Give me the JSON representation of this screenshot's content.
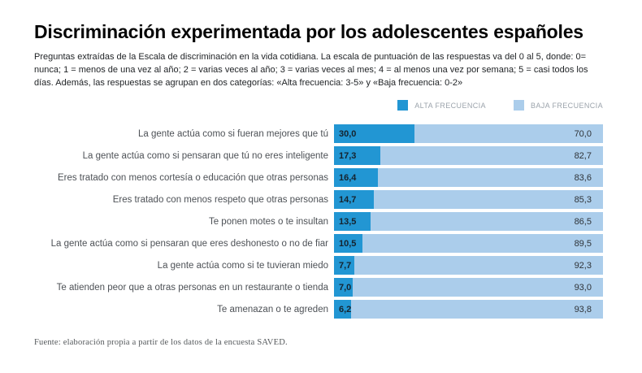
{
  "header": {
    "title": "Discriminación experimentada por los adolescentes españoles",
    "subtitle": "Preguntas extraídas de la Escala de discriminación en la vida cotidiana. La escala de puntuación de las respuestas va del 0 al 5, donde: 0= nunca; 1 = menos de una vez al año; 2 = varias veces al año; 3 = varias veces al mes; 4 = al menos una vez por semana; 5 = casi todos los días. Además, las respuestas se agrupan en dos categorías: «Alta frecuencia: 3-5» y «Baja frecuencia: 0-2»"
  },
  "footer": {
    "source": "Fuente: elaboración propia a partir de los datos de la encuesta SAVED."
  },
  "chart_data": {
    "type": "bar",
    "orientation": "horizontal-stacked-100",
    "title": "Discriminación experimentada por los adolescentes españoles",
    "xlim": [
      0,
      100
    ],
    "grid": false,
    "legend_position": "top-right",
    "legend": [
      "ALTA FRECUENCIA",
      "BAJA FRECUENCIA"
    ],
    "colors": {
      "alta": "#2296d3",
      "baja": "#abcdeb"
    },
    "categories": [
      "La gente actúa como si fueran mejores que tú",
      "La gente actúa como si pensaran que tú no eres inteligente",
      "Eres tratado con menos cortesía o educación que otras personas",
      "Eres tratado con menos respeto que otras personas",
      "Te ponen motes o te insultan",
      "La gente actúa como si pensaran que eres deshonesto o no de fiar",
      "La gente actúa como si te tuvieran miedo",
      "Te atienden peor que a otras personas en un restaurante o tienda",
      "Te amenazan o te agreden"
    ],
    "series": [
      {
        "name": "ALTA FRECUENCIA",
        "values": [
          30.0,
          17.3,
          16.4,
          14.7,
          13.5,
          10.5,
          7.7,
          7.0,
          6.2
        ]
      },
      {
        "name": "BAJA FRECUENCIA",
        "values": [
          70.0,
          82.7,
          83.6,
          85.3,
          86.5,
          89.5,
          92.3,
          93.0,
          93.8
        ]
      }
    ],
    "rows": [
      {
        "label": "La gente actúa como si fueran mejores que tú",
        "alta": 30.0,
        "baja": 70.0,
        "alta_text": "30,0",
        "baja_text": "70,0"
      },
      {
        "label": "La gente actúa como si pensaran que tú no eres inteligente",
        "alta": 17.3,
        "baja": 82.7,
        "alta_text": "17,3",
        "baja_text": "82,7"
      },
      {
        "label": "Eres tratado con menos cortesía o educación que otras personas",
        "alta": 16.4,
        "baja": 83.6,
        "alta_text": "16,4",
        "baja_text": "83,6"
      },
      {
        "label": "Eres tratado con menos respeto que otras personas",
        "alta": 14.7,
        "baja": 85.3,
        "alta_text": "14,7",
        "baja_text": "85,3"
      },
      {
        "label": "Te ponen motes o te insultan",
        "alta": 13.5,
        "baja": 86.5,
        "alta_text": "13,5",
        "baja_text": "86,5"
      },
      {
        "label": "La gente actúa como si pensaran que eres deshonesto o no de fiar",
        "alta": 10.5,
        "baja": 89.5,
        "alta_text": "10,5",
        "baja_text": "89,5"
      },
      {
        "label": "La gente actúa como si te tuvieran miedo",
        "alta": 7.7,
        "baja": 92.3,
        "alta_text": "7,7",
        "baja_text": "92,3"
      },
      {
        "label": "Te atienden peor que a otras personas en un restaurante o tienda",
        "alta": 7.0,
        "baja": 93.0,
        "alta_text": "7,0",
        "baja_text": "93,0"
      },
      {
        "label": "Te amenazan o te agreden",
        "alta": 6.2,
        "baja": 93.8,
        "alta_text": "6,2",
        "baja_text": "93,8"
      }
    ],
    "legend_labels": {
      "alta": "ALTA FRECUENCIA",
      "baja": "BAJA FRECUENCIA"
    }
  }
}
